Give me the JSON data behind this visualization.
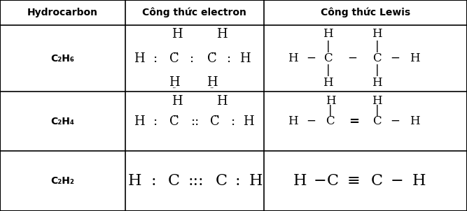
{
  "figsize": [
    6.67,
    3.02
  ],
  "dpi": 100,
  "bg_color": "#ffffff",
  "border_color": "#000000",
  "cols": [
    0.0,
    0.268,
    0.565,
    1.0
  ],
  "rows": [
    1.0,
    0.882,
    0.565,
    0.285,
    0.0
  ],
  "header": [
    "Hydrocarbon",
    "Công thức electron",
    "Công thức Lewis"
  ],
  "r1_label": "C₂H₆",
  "r2_label": "C₂H₄",
  "r3_label": "C₂H₂"
}
